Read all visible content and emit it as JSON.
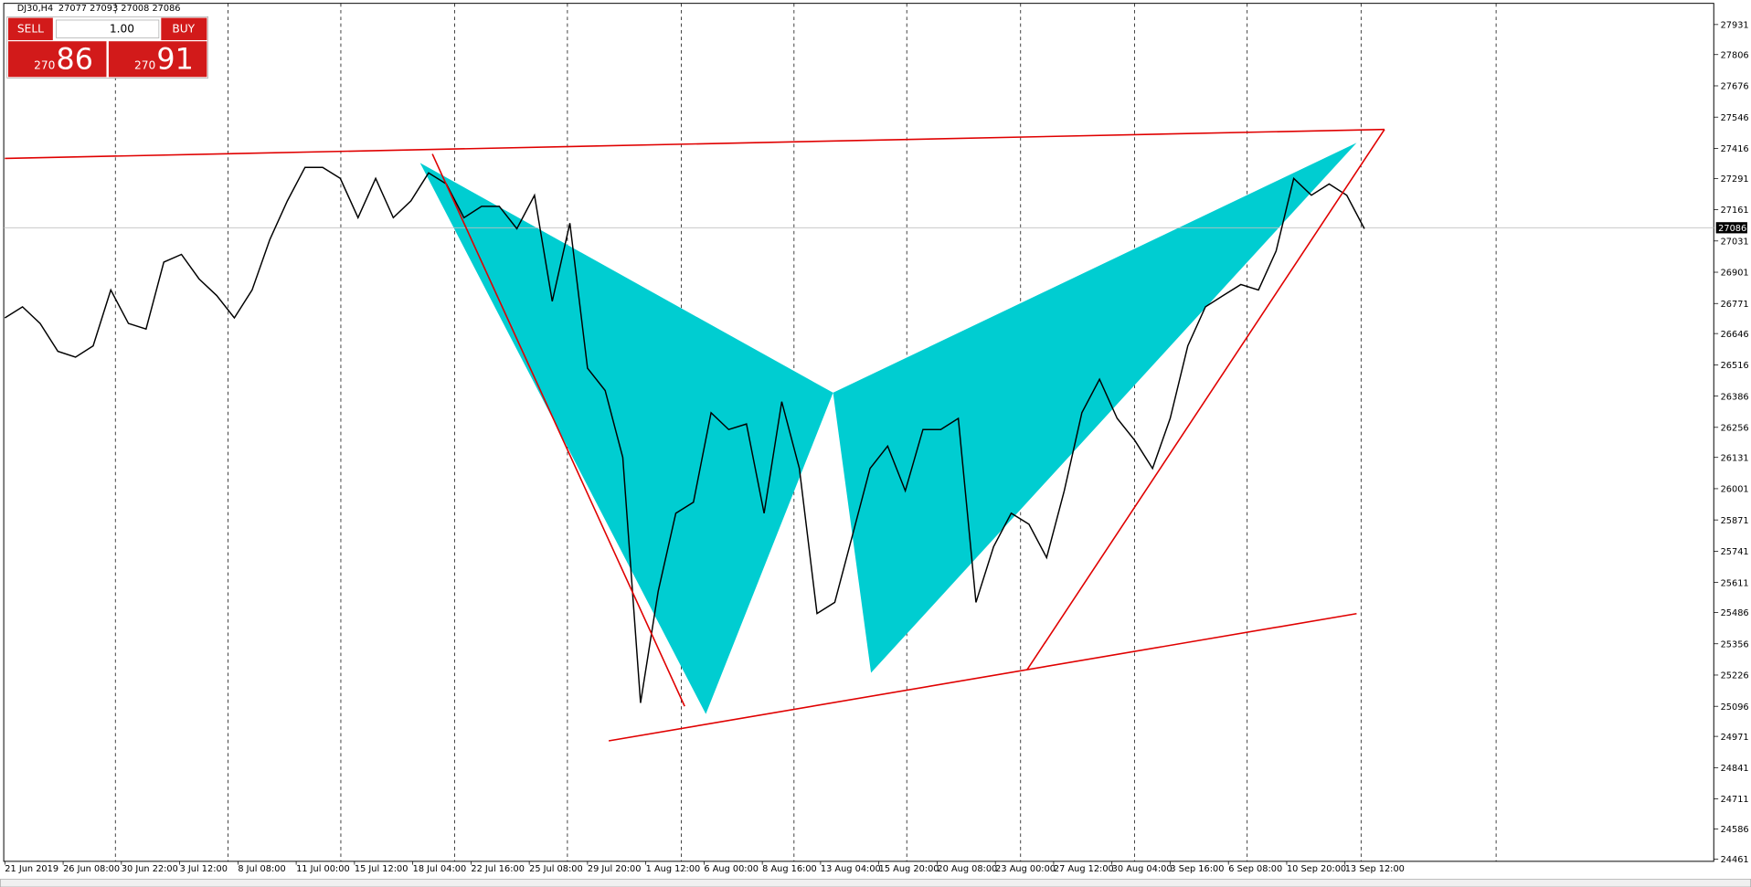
{
  "header": {
    "symbol": "DJ30,H4",
    "ohlc": "27077 27093 27008 27086"
  },
  "trade_panel": {
    "sell": "SELL",
    "buy": "BUY",
    "lots": "1.00",
    "bid_big": "270",
    "bid_small": "86",
    "ask_big": "270",
    "ask_small": "91"
  },
  "chart_data": {
    "type": "line",
    "color": "#000000",
    "values": [
      26711,
      26757,
      26688,
      26572,
      26548,
      26595,
      26827,
      26688,
      26665,
      26943,
      26975,
      26873,
      26804,
      26711,
      26827,
      27036,
      27198,
      27337,
      27337,
      27291,
      27128,
      27291,
      27128,
      27198,
      27314,
      27268,
      27128,
      27175,
      27175,
      27082,
      27221,
      26780,
      27105,
      26502,
      26409,
      26131,
      25110,
      25574,
      25899,
      25945,
      26317,
      26247,
      26270,
      25899,
      26363,
      26085,
      25482,
      25528,
      25806,
      26085,
      26178,
      25992,
      26247,
      26247,
      26293,
      25528,
      25760,
      25899,
      25853,
      25714,
      25992,
      26317,
      26456,
      26293,
      26201,
      26085,
      26293,
      26595,
      26757,
      26804,
      26850,
      26827,
      26989,
      27291,
      27221,
      27268,
      27221,
      27082
    ],
    "ylim": [
      24456,
      28033
    ],
    "yticks": [
      27931,
      27806,
      27676,
      27546,
      27416,
      27291,
      27161,
      27031,
      26901,
      26771,
      26646,
      26516,
      26386,
      26256,
      26131,
      26001,
      25871,
      25741,
      25611,
      25486,
      25356,
      25226,
      25096,
      24971,
      24841,
      24711,
      24586,
      24461
    ],
    "last_price": 27086,
    "time_labels": [
      "21 Jun 2019",
      "26 Jun 08:00",
      "30 Jun 22:00",
      "3 Jul 12:00",
      "8 Jul 08:00",
      "11 Jul 00:00",
      "15 Jul 12:00",
      "18 Jul 04:00",
      "22 Jul 16:00",
      "25 Jul 08:00",
      "29 Jul 20:00",
      "1 Aug 12:00",
      "6 Aug 00:00",
      "8 Aug 16:00",
      "13 Aug 04:00",
      "15 Aug 20:00",
      "20 Aug 08:00",
      "23 Aug 00:00",
      "27 Aug 12:00",
      "30 Aug 04:00",
      "3 Sep 16:00",
      "6 Sep 08:00",
      "10 Sep 20:00",
      "13 Sep 12:00"
    ]
  }
}
